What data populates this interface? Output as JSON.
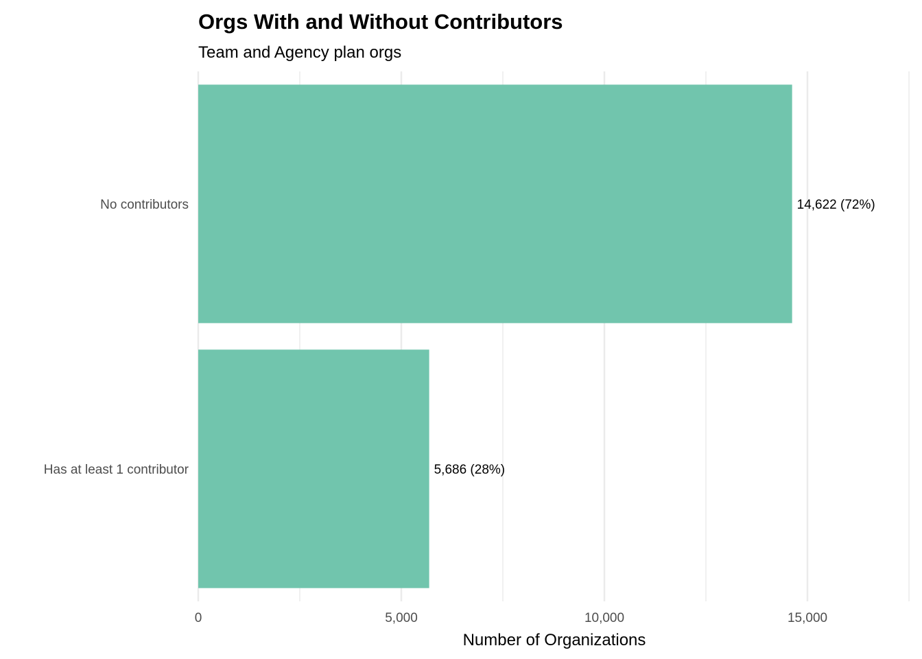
{
  "chart_data": {
    "type": "bar",
    "orientation": "horizontal",
    "title": "Orgs With and Without Contributors",
    "subtitle": "Team and Agency plan orgs",
    "xlabel": "Number of Organizations",
    "ylabel": "",
    "categories": [
      "No contributors",
      "Has at least 1 contributor"
    ],
    "values": [
      14622,
      5686
    ],
    "data_labels": [
      "14,622 (72%)",
      "5,686 (28%)"
    ],
    "xlim": [
      0,
      17550
    ],
    "x_ticks": [
      0,
      5000,
      10000,
      15000
    ],
    "x_tick_labels": [
      "0",
      "5,000",
      "10,000",
      "15,000"
    ],
    "x_minor_ticks": [
      2500,
      7500,
      12500,
      17500
    ],
    "grid": true,
    "legend": "none",
    "bar_color": "#71C5AD",
    "grid_color": "#EBEBEB"
  }
}
